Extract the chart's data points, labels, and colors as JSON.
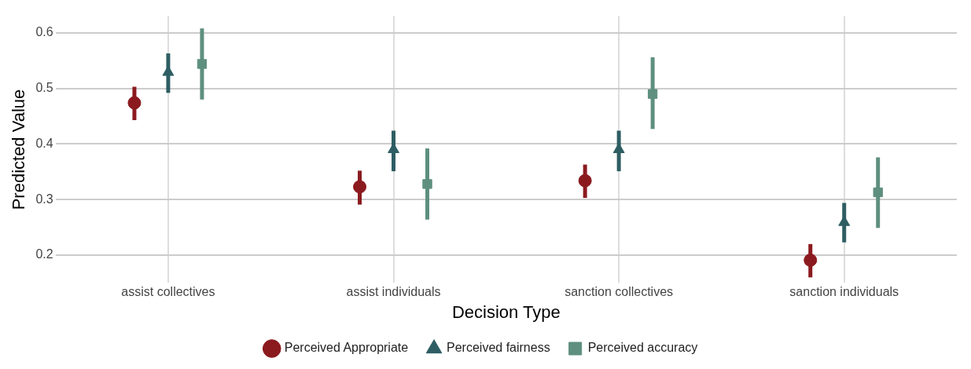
{
  "chart_data": {
    "type": "scatter",
    "xlabel": "Decision Type",
    "ylabel": "Predicted Value",
    "categories": [
      "assist collectives",
      "assist individuals",
      "sanction collectives",
      "sanction individuals"
    ],
    "series": [
      {
        "name": "Perceived Appropriate",
        "color": "#8b1a1f",
        "marker": "circle",
        "values": [
          0.474,
          0.323,
          0.334,
          0.191
        ],
        "errors": [
          [
            0.443,
            0.503
          ],
          [
            0.291,
            0.352
          ],
          [
            0.303,
            0.363
          ],
          [
            0.16,
            0.22
          ]
        ]
      },
      {
        "name": "Perceived fairness",
        "color": "#2e5e63",
        "marker": "triangle",
        "values": [
          0.529,
          0.39,
          0.39,
          0.259
        ],
        "errors": [
          [
            0.492,
            0.563
          ],
          [
            0.351,
            0.424
          ],
          [
            0.351,
            0.424
          ],
          [
            0.223,
            0.294
          ]
        ]
      },
      {
        "name": "Perceived accuracy",
        "color": "#5e8f7f",
        "marker": "square",
        "values": [
          0.544,
          0.328,
          0.49,
          0.313
        ],
        "errors": [
          [
            0.48,
            0.608
          ],
          [
            0.264,
            0.392
          ],
          [
            0.427,
            0.556
          ],
          [
            0.249,
            0.376
          ]
        ]
      }
    ],
    "ylim": [
      0.15,
      0.63
    ],
    "yticks": [
      0.2,
      0.3,
      0.4,
      0.5,
      0.6
    ],
    "grid": true,
    "legend": "bottom"
  }
}
